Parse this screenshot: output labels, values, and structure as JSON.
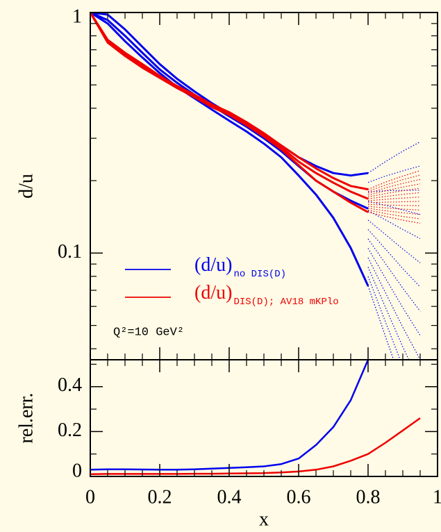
{
  "chart_data": [
    {
      "type": "line",
      "y_label": "d/u",
      "log_y": true,
      "ylim": [
        0.036,
        1
      ],
      "yticks": [
        1,
        0.1
      ],
      "minor_yticks": [
        0.04,
        0.05,
        0.06,
        0.07,
        0.08,
        0.09,
        0.2,
        0.3,
        0.4,
        0.5,
        0.6,
        0.7,
        0.8,
        0.9
      ],
      "xlim": [
        0,
        1
      ],
      "xticks": [
        0,
        0.2,
        0.4,
        0.6,
        0.8,
        1
      ],
      "minor_xticks": [
        0.05,
        0.1,
        0.15,
        0.25,
        0.3,
        0.35,
        0.45,
        0.5,
        0.55,
        0.65,
        0.7,
        0.75,
        0.85,
        0.9,
        0.95
      ],
      "extrapolated_from": 0.8,
      "annotation": "Q²=10 GeV²",
      "x": [
        0,
        0.05,
        0.1,
        0.15,
        0.2,
        0.25,
        0.3,
        0.35,
        0.4,
        0.45,
        0.5,
        0.55,
        0.6,
        0.65,
        0.7,
        0.75,
        0.8,
        0.85,
        0.9,
        0.95
      ],
      "series": [
        {
          "name": "(d/u)",
          "subscript": "no DIS(D)",
          "color": "#0000ee",
          "values": [
            1.0,
            0.93,
            0.8,
            0.68,
            0.58,
            0.51,
            0.455,
            0.41,
            0.37,
            0.335,
            0.3,
            0.265,
            0.23,
            0.2,
            0.18,
            0.165,
            0.153,
            null,
            null,
            null
          ],
          "upper": [
            1.0,
            0.98,
            0.85,
            0.72,
            0.61,
            0.53,
            0.47,
            0.42,
            0.38,
            0.345,
            0.31,
            0.28,
            0.25,
            0.23,
            0.215,
            0.21,
            0.215,
            0.24,
            0.265,
            0.29
          ],
          "lower": [
            1.0,
            0.9,
            0.76,
            0.65,
            0.56,
            0.49,
            0.44,
            0.395,
            0.355,
            0.32,
            0.285,
            0.25,
            0.21,
            0.175,
            0.14,
            0.105,
            0.073,
            0.045,
            0.028,
            0.018
          ]
        },
        {
          "name": "(d/u)",
          "subscript": "DIS(D); AV18 mKPlo",
          "color": "#ee0000",
          "values": [
            1.0,
            0.76,
            0.67,
            0.6,
            0.54,
            0.49,
            0.45,
            0.41,
            0.38,
            0.345,
            0.31,
            0.275,
            0.24,
            0.215,
            0.196,
            0.18,
            0.168,
            null,
            null,
            null
          ],
          "upper": [
            1.0,
            0.77,
            0.68,
            0.61,
            0.545,
            0.495,
            0.455,
            0.415,
            0.385,
            0.35,
            0.315,
            0.28,
            0.25,
            0.225,
            0.205,
            0.19,
            0.184,
            0.197,
            0.209,
            0.22
          ],
          "lower": [
            1.0,
            0.75,
            0.66,
            0.59,
            0.535,
            0.485,
            0.445,
            0.405,
            0.375,
            0.34,
            0.305,
            0.27,
            0.232,
            0.2,
            0.18,
            0.162,
            0.148,
            0.142,
            0.137,
            0.133
          ]
        }
      ]
    },
    {
      "type": "line",
      "y_label": "rel.err.",
      "x_label": "x",
      "ylim": [
        0,
        0.52
      ],
      "yticks": [
        0,
        0.2,
        0.4
      ],
      "minor_yticks": [
        0.1,
        0.3,
        0.5
      ],
      "xlim": [
        0,
        1
      ],
      "xticks": [
        0,
        0.2,
        0.4,
        0.6,
        0.8,
        1
      ],
      "minor_xticks": [
        0.05,
        0.1,
        0.15,
        0.25,
        0.3,
        0.35,
        0.45,
        0.5,
        0.55,
        0.65,
        0.7,
        0.75,
        0.85,
        0.9,
        0.95
      ],
      "x": [
        0,
        0.05,
        0.1,
        0.15,
        0.2,
        0.25,
        0.3,
        0.35,
        0.4,
        0.45,
        0.5,
        0.55,
        0.6,
        0.65,
        0.7,
        0.75,
        0.8,
        0.85,
        0.9,
        0.95
      ],
      "series": [
        {
          "color": "#0000ee",
          "values": [
            0.03,
            0.032,
            0.032,
            0.031,
            0.03,
            0.03,
            0.032,
            0.035,
            0.038,
            0.041,
            0.045,
            0.055,
            0.08,
            0.14,
            0.22,
            0.34,
            0.52,
            null,
            null,
            null
          ]
        },
        {
          "color": "#ee0000",
          "values": [
            0.01,
            0.011,
            0.011,
            0.011,
            0.011,
            0.011,
            0.012,
            0.012,
            0.013,
            0.014,
            0.015,
            0.018,
            0.022,
            0.03,
            0.045,
            0.07,
            0.1,
            0.15,
            0.205,
            0.26
          ]
        }
      ]
    }
  ]
}
